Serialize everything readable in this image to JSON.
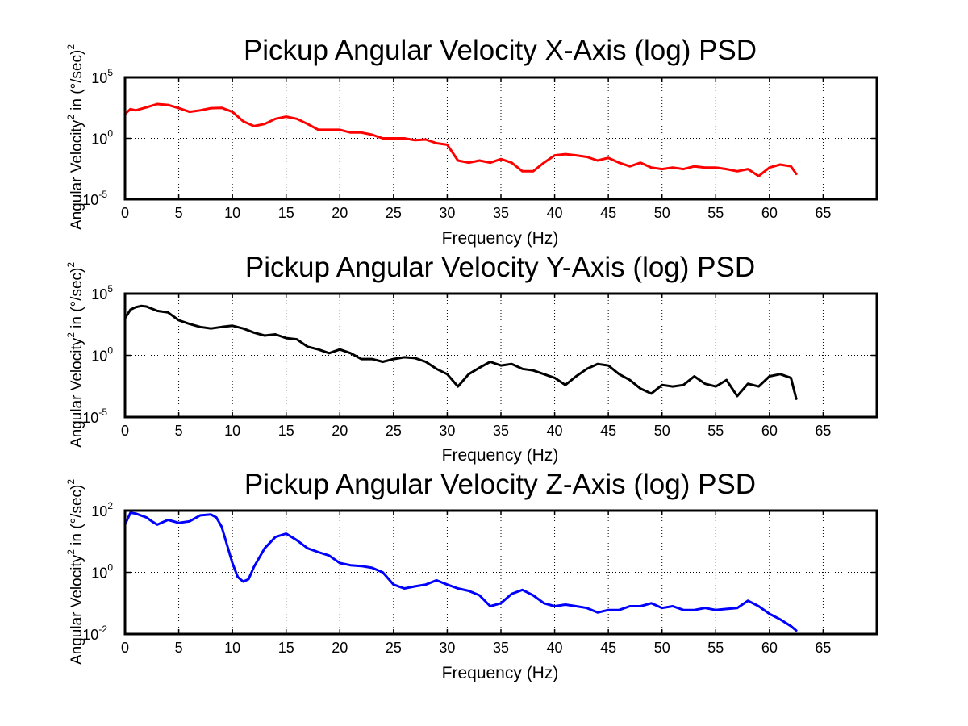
{
  "chart_data": [
    {
      "type": "line",
      "title": "Pickup Angular Velocity X-Axis (log) PSD",
      "xlabel": "Frequency (Hz)",
      "ylabel": {
        "base": "Angular Velocity",
        "sup1": "2",
        "mid": " in (°/sec)",
        "sup2": "2"
      },
      "xlim": [
        0,
        70
      ],
      "ylim": [
        1e-05,
        100000.0
      ],
      "yscale": "log",
      "xticks": [
        0,
        5,
        10,
        15,
        20,
        25,
        30,
        35,
        40,
        45,
        50,
        55,
        60,
        65
      ],
      "yticks": [
        {
          "value": 1e-05,
          "base": "10",
          "exp": "-5"
        },
        {
          "value": 1,
          "base": "10",
          "exp": "0"
        },
        {
          "value": 100000.0,
          "base": "10",
          "exp": "5"
        }
      ],
      "grid": true,
      "color": "#ff0000",
      "series": [
        {
          "x": [
            0,
            0.5,
            1,
            2,
            3,
            4,
            5,
            6,
            7,
            8,
            9,
            10,
            11,
            12,
            13,
            14,
            15,
            16,
            17,
            18,
            19,
            20,
            21,
            22,
            23,
            24,
            25,
            26,
            27,
            28,
            29,
            30,
            31,
            32,
            33,
            34,
            35,
            36,
            37,
            38,
            39,
            40,
            41,
            42,
            43,
            44,
            45,
            46,
            47,
            48,
            49,
            50,
            51,
            52,
            53,
            54,
            55,
            56,
            57,
            58,
            59,
            60,
            61,
            62,
            62.5
          ],
          "y": [
            100,
            250,
            200,
            350,
            650,
            550,
            300,
            150,
            200,
            300,
            320,
            150,
            25,
            10,
            15,
            40,
            60,
            40,
            15,
            5,
            5,
            5,
            3,
            3,
            2,
            1,
            1,
            1,
            0.7,
            0.8,
            0.4,
            0.3,
            0.015,
            0.01,
            0.015,
            0.01,
            0.02,
            0.01,
            0.002,
            0.002,
            0.01,
            0.04,
            0.05,
            0.04,
            0.03,
            0.015,
            0.025,
            0.01,
            0.005,
            0.01,
            0.004,
            0.003,
            0.004,
            0.003,
            0.005,
            0.004,
            0.004,
            0.003,
            0.002,
            0.003,
            0.0008,
            0.004,
            0.007,
            0.005,
            0.0012
          ]
        }
      ]
    },
    {
      "type": "line",
      "title": "Pickup Angular Velocity Y-Axis (log) PSD",
      "xlabel": "Frequency (Hz)",
      "ylabel": {
        "base": "Angular Velocity",
        "sup1": "2",
        "mid": " in (°/sec)",
        "sup2": "2"
      },
      "xlim": [
        0,
        70
      ],
      "ylim": [
        1e-05,
        100000.0
      ],
      "yscale": "log",
      "xticks": [
        0,
        5,
        10,
        15,
        20,
        25,
        30,
        35,
        40,
        45,
        50,
        55,
        60,
        65
      ],
      "yticks": [
        {
          "value": 1e-05,
          "base": "10",
          "exp": "-5"
        },
        {
          "value": 1,
          "base": "10",
          "exp": "0"
        },
        {
          "value": 100000.0,
          "base": "10",
          "exp": "5"
        }
      ],
      "grid": true,
      "color": "#000000",
      "series": [
        {
          "x": [
            0,
            0.5,
            1,
            1.5,
            2,
            3,
            4,
            5,
            6,
            7,
            8,
            9,
            10,
            11,
            12,
            13,
            14,
            15,
            16,
            17,
            18,
            19,
            20,
            21,
            22,
            23,
            24,
            25,
            26,
            27,
            28,
            29,
            30,
            31,
            32,
            33,
            34,
            35,
            36,
            37,
            38,
            39,
            40,
            41,
            42,
            43,
            44,
            45,
            46,
            47,
            48,
            49,
            50,
            51,
            52,
            53,
            54,
            55,
            56,
            57,
            58,
            59,
            60,
            61,
            62,
            62.5
          ],
          "y": [
            1000,
            5000,
            8000,
            10000,
            9000,
            4000,
            3000,
            700,
            350,
            200,
            150,
            200,
            250,
            150,
            70,
            40,
            50,
            25,
            20,
            5,
            3,
            1.5,
            3,
            1.5,
            0.5,
            0.5,
            0.3,
            0.5,
            0.7,
            0.6,
            0.3,
            0.08,
            0.03,
            0.003,
            0.03,
            0.1,
            0.3,
            0.15,
            0.2,
            0.08,
            0.06,
            0.03,
            0.015,
            0.004,
            0.02,
            0.08,
            0.2,
            0.15,
            0.03,
            0.01,
            0.002,
            0.0008,
            0.004,
            0.003,
            0.004,
            0.02,
            0.005,
            0.003,
            0.01,
            0.0005,
            0.005,
            0.003,
            0.02,
            0.03,
            0.015,
            0.0003
          ]
        }
      ]
    },
    {
      "type": "line",
      "title": "Pickup Angular Velocity Z-Axis (log) PSD",
      "xlabel": "Frequency (Hz)",
      "ylabel": {
        "base": "Angular Velocity",
        "sup1": "2",
        "mid": " in (°/sec)",
        "sup2": "2"
      },
      "xlim": [
        0,
        70
      ],
      "ylim": [
        0.01,
        100
      ],
      "yscale": "log",
      "xticks": [
        0,
        5,
        10,
        15,
        20,
        25,
        30,
        35,
        40,
        45,
        50,
        55,
        60,
        65
      ],
      "yticks": [
        {
          "value": 0.01,
          "base": "10",
          "exp": "-2"
        },
        {
          "value": 1,
          "base": "10",
          "exp": "0"
        },
        {
          "value": 100,
          "base": "10",
          "exp": "2"
        }
      ],
      "grid": true,
      "color": "#0000ff",
      "series": [
        {
          "x": [
            0,
            0.5,
            1,
            2,
            2.5,
            3,
            4,
            5,
            6,
            7,
            8,
            8.5,
            9,
            10,
            10.5,
            11,
            11.5,
            12,
            13,
            14,
            15,
            16,
            17,
            18,
            19,
            20,
            21,
            22,
            23,
            24,
            25,
            26,
            27,
            28,
            29,
            30,
            31,
            32,
            33,
            34,
            35,
            36,
            37,
            38,
            39,
            40,
            41,
            42,
            43,
            44,
            45,
            46,
            47,
            48,
            49,
            50,
            51,
            52,
            53,
            54,
            55,
            56,
            57,
            58,
            59,
            60,
            61,
            62,
            62.5
          ],
          "y": [
            35,
            85,
            80,
            60,
            45,
            35,
            50,
            40,
            45,
            70,
            75,
            60,
            30,
            2,
            0.7,
            0.5,
            0.6,
            1.5,
            6,
            14,
            18,
            11,
            6,
            4.5,
            3.5,
            2,
            1.7,
            1.6,
            1.4,
            1,
            0.4,
            0.3,
            0.35,
            0.4,
            0.55,
            0.4,
            0.3,
            0.25,
            0.18,
            0.08,
            0.1,
            0.2,
            0.27,
            0.18,
            0.1,
            0.08,
            0.09,
            0.08,
            0.07,
            0.05,
            0.06,
            0.06,
            0.08,
            0.08,
            0.1,
            0.07,
            0.08,
            0.06,
            0.06,
            0.07,
            0.06,
            0.065,
            0.07,
            0.12,
            0.08,
            0.045,
            0.03,
            0.018,
            0.013
          ]
        }
      ]
    }
  ]
}
